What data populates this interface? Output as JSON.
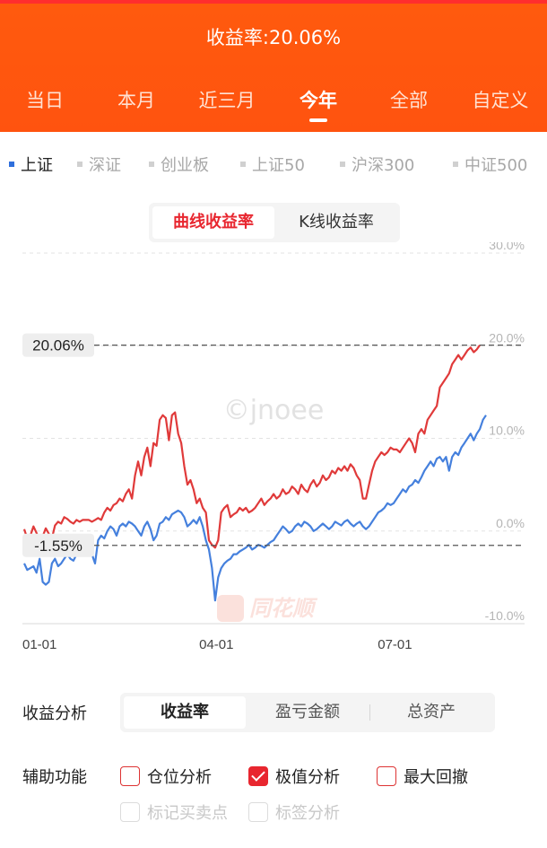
{
  "header": {
    "title": "收益率:20.06%",
    "tabs": [
      {
        "label": "当日",
        "active": false
      },
      {
        "label": "本月",
        "active": false
      },
      {
        "label": "近三月",
        "active": false
      },
      {
        "label": "今年",
        "active": true
      },
      {
        "label": "全部",
        "active": false
      },
      {
        "label": "自定义",
        "active": false
      }
    ]
  },
  "indexes": [
    {
      "label": "上证",
      "active": true
    },
    {
      "label": "深证",
      "active": false
    },
    {
      "label": "创业板",
      "active": false
    },
    {
      "label": "上证50",
      "active": false
    },
    {
      "label": "沪深300",
      "active": false
    },
    {
      "label": "中证500",
      "active": false
    }
  ],
  "chart_mode": {
    "options": [
      "曲线收益率",
      "K线收益率"
    ],
    "selected": "曲线收益率"
  },
  "chart_data": {
    "type": "line",
    "ylim": [
      -10,
      30
    ],
    "yticks": [
      "30.0%",
      "20.0%",
      "10.0%",
      "0.0%",
      "-10.0%"
    ],
    "xlim": [
      0,
      150
    ],
    "x_ticks": [
      {
        "x": 0,
        "label": "01-01"
      },
      {
        "x": 63,
        "label": "04-01"
      },
      {
        "x": 121,
        "label": "07-01"
      }
    ],
    "grid": true,
    "watermark": "©jnoee",
    "logo_text": "同花顺",
    "markers": [
      {
        "label": "20.06%",
        "value": 20.06
      },
      {
        "label": "-1.55%",
        "value": -1.55
      }
    ],
    "series": [
      {
        "color": "#e03a3a",
        "values": [
          0.2,
          -0.8,
          -0.5,
          0.5,
          -0.2,
          -1.0,
          -0.6,
          0.3,
          -0.3,
          -0.8,
          0.6,
          1.0,
          0.8,
          1.5,
          1.3,
          1.0,
          0.8,
          1.2,
          1.0,
          1.2,
          1.2,
          1.2,
          1.0,
          1.2,
          1.4,
          1.2,
          2.0,
          2.5,
          2.2,
          2.8,
          3.0,
          3.5,
          3.2,
          4.0,
          4.5,
          3.5,
          6.0,
          7.5,
          6.0,
          8.0,
          9.0,
          7.0,
          9.5,
          9.2,
          12.0,
          12.5,
          12.2,
          9.8,
          12.5,
          12.8,
          10.5,
          9.5,
          7.0,
          5.0,
          5.5,
          4.5,
          3.0,
          3.5,
          2.5,
          2.0,
          -1.0,
          -1.5,
          -1.8,
          -1.0,
          2.0,
          2.5,
          2.8,
          1.5,
          1.8,
          2.0,
          2.5,
          2.2,
          2.5,
          2.0,
          2.2,
          2.5,
          3.0,
          3.5,
          2.8,
          3.2,
          3.5,
          4.0,
          3.5,
          3.8,
          4.5,
          4.0,
          4.2,
          4.8,
          4.5,
          4.0,
          5.0,
          4.5,
          4.2,
          5.0,
          5.5,
          4.8,
          5.2,
          6.0,
          5.5,
          5.8,
          6.5,
          6.2,
          6.8,
          6.5,
          7.0,
          6.5,
          7.2,
          6.8,
          6.0,
          5.5,
          3.5,
          3.5,
          5.0,
          6.5,
          7.5,
          8.0,
          8.5,
          8.2,
          8.5,
          9.0,
          8.8,
          8.8,
          8.5,
          9.0,
          9.5,
          10.0,
          9.5,
          8.5,
          10.5,
          11.0,
          10.5,
          12.0,
          12.5,
          13.0,
          13.5,
          15.5,
          16.0,
          16.5,
          17.0,
          18.0,
          18.5,
          19.0,
          18.5,
          19.0,
          19.5,
          19.8,
          19.3,
          19.6,
          20.06
        ]
      },
      {
        "color": "#4580dd",
        "values": [
          -3.5,
          -4.2,
          -4.0,
          -3.8,
          -4.5,
          -3.0,
          -5.5,
          -5.8,
          -5.5,
          -3.5,
          -3.0,
          -3.8,
          -3.5,
          -3.0,
          -2.5,
          -3.0,
          -3.2,
          -2.5,
          -2.0,
          -1.5,
          -1.8,
          -1.5,
          -2.5,
          -3.5,
          -1.0,
          -0.5,
          -0.8,
          0.0,
          0.5,
          0.2,
          -0.5,
          0.5,
          0.8,
          0.5,
          1.0,
          0.8,
          0.5,
          0.0,
          -0.5,
          0.5,
          1.0,
          0.2,
          -1.0,
          -0.5,
          0.8,
          1.0,
          1.5,
          1.2,
          1.8,
          2.0,
          2.2,
          2.0,
          1.5,
          0.5,
          0.8,
          1.2,
          0.8,
          1.5,
          0.5,
          -1.0,
          -2.0,
          -4.0,
          -7.5,
          -5.0,
          -4.0,
          -3.5,
          -3.2,
          -3.0,
          -2.5,
          -2.5,
          -2.2,
          -2.0,
          -1.8,
          -1.5,
          -2.0,
          -1.8,
          -1.5,
          -1.6,
          -1.8,
          -1.5,
          -1.2,
          -1.0,
          -0.5,
          0.0,
          0.5,
          0.2,
          -0.2,
          0.0,
          0.5,
          0.8,
          0.5,
          1.0,
          0.8,
          0.5,
          0.0,
          0.2,
          0.5,
          0.8,
          0.5,
          0.2,
          0.5,
          1.0,
          0.8,
          0.6,
          1.0,
          1.2,
          0.8,
          0.5,
          0.8,
          1.0,
          0.5,
          0.2,
          0.5,
          1.0,
          1.5,
          2.0,
          2.2,
          2.5,
          3.0,
          2.8,
          3.0,
          3.5,
          4.0,
          4.5,
          4.2,
          4.8,
          5.0,
          5.5,
          5.2,
          5.8,
          6.5,
          7.0,
          7.5,
          7.0,
          7.8,
          8.0,
          7.5,
          8.0,
          6.5,
          8.0,
          8.5,
          8.2,
          9.0,
          9.5,
          10.0,
          10.5,
          9.8,
          10.5,
          11.0,
          12.0,
          12.5
        ]
      }
    ]
  },
  "analysis": {
    "label": "收益分析",
    "options": [
      "收益率",
      "盈亏金额",
      "总资产"
    ],
    "selected": "收益率"
  },
  "aux": {
    "label": "辅助功能",
    "items": [
      {
        "label": "仓位分析",
        "checked": false,
        "disabled": false
      },
      {
        "label": "极值分析",
        "checked": true,
        "disabled": false
      },
      {
        "label": "最大回撤",
        "checked": false,
        "disabled": false
      },
      {
        "label": "标记买卖点",
        "checked": false,
        "disabled": true
      },
      {
        "label": "标签分析",
        "checked": false,
        "disabled": true
      }
    ]
  },
  "colors": {
    "header_bg": "#ff530f",
    "accent_red": "#e8262f",
    "series_red": "#e03a3a",
    "series_blue": "#4580dd"
  }
}
